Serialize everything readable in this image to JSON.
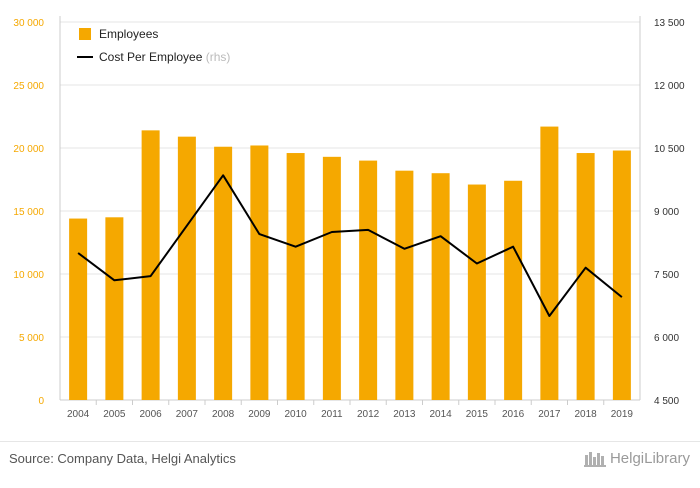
{
  "source": "Source: Company Data, Helgi Analytics",
  "brand": {
    "name": "HelgiLibrary",
    "icon": "helgi-logo-icon"
  },
  "colors": {
    "bars": "#f5a800",
    "line": "#000000",
    "grid": "#e6e6e6",
    "axis_text": "#f5a800",
    "tick_text": "#555555"
  },
  "legend": {
    "bar_label": "Employees",
    "line_label": "Cost Per Employee",
    "line_suffix": "(rhs)"
  },
  "chart_data": {
    "type": "bar",
    "categories": [
      "2004",
      "2005",
      "2006",
      "2007",
      "2008",
      "2009",
      "2010",
      "2011",
      "2012",
      "2013",
      "2014",
      "2015",
      "2016",
      "2017",
      "2018",
      "2019"
    ],
    "series": [
      {
        "name": "Employees",
        "type": "bar",
        "axis": "left",
        "values": [
          14400,
          14500,
          21400,
          20900,
          20100,
          20200,
          19600,
          19300,
          19000,
          18200,
          18000,
          17100,
          17400,
          21700,
          19600,
          19800
        ]
      },
      {
        "name": "Cost Per Employee",
        "type": "line",
        "axis": "right",
        "values": [
          8000,
          7350,
          7450,
          8650,
          9850,
          8450,
          8150,
          8500,
          8550,
          8100,
          8400,
          7750,
          8150,
          6500,
          7650,
          6950
        ]
      }
    ],
    "y_left": {
      "min": 0,
      "max": 30000,
      "ticks": [
        0,
        5000,
        10000,
        15000,
        20000,
        25000,
        30000
      ],
      "tick_labels": [
        "0",
        "5 000",
        "10 000",
        "15 000",
        "20 000",
        "25 000",
        "30 000"
      ]
    },
    "y_right": {
      "min": 4500,
      "max": 13500,
      "ticks": [
        4500,
        6000,
        7500,
        9000,
        10500,
        12000,
        13500
      ],
      "tick_labels": [
        "4 500",
        "6 000",
        "7 500",
        "9 000",
        "10 500",
        "12 000",
        "13 500"
      ]
    },
    "grid": true,
    "legend_position": "top-left"
  }
}
